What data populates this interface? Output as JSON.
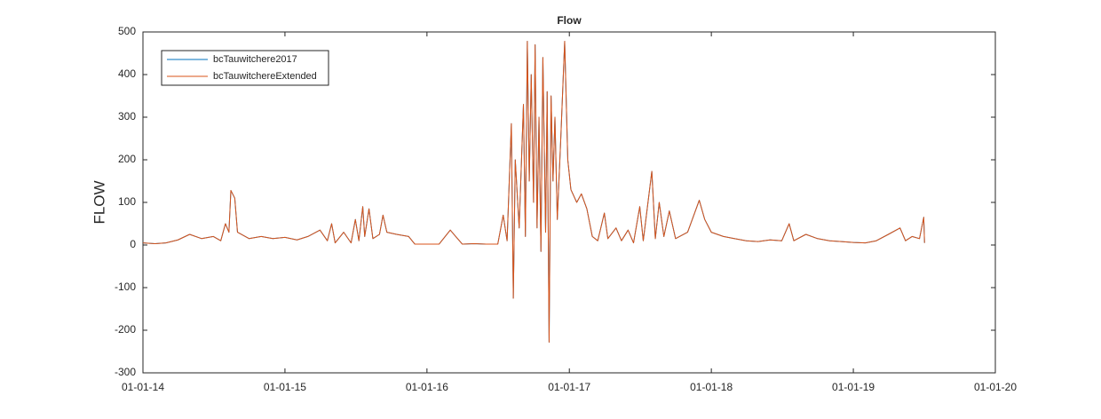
{
  "chart_data": {
    "type": "line",
    "title": "Flow",
    "y_label": "FLOW",
    "x": [
      "01-01-14",
      "02-01-14",
      "03-01-14",
      "04-01-14",
      "05-01-14",
      "06-01-14",
      "07-01-14",
      "07-20-14",
      "08-01-14",
      "08-10-14",
      "08-15-14",
      "08-25-14",
      "09-01-14",
      "10-01-14",
      "11-01-14",
      "12-01-14",
      "01-01-15",
      "02-01-15",
      "03-01-15",
      "04-01-15",
      "04-20-15",
      "05-01-15",
      "05-10-15",
      "06-01-15",
      "06-20-15",
      "07-01-15",
      "07-10-15",
      "07-20-15",
      "07-25-15",
      "08-05-15",
      "08-15-15",
      "09-01-15",
      "09-10-15",
      "09-20-15",
      "10-15-15",
      "11-15-15",
      "12-01-15",
      "01-01-16",
      "02-01-16",
      "03-01-16",
      "03-15-16",
      "04-01-16",
      "05-01-16",
      "06-01-16",
      "07-01-16",
      "07-15-16",
      "07-25-16",
      "08-05-16",
      "08-10-16",
      "08-15-16",
      "08-25-16",
      "09-05-16",
      "09-10-16",
      "09-15-16",
      "09-20-16",
      "09-25-16",
      "10-01-16",
      "10-05-16",
      "10-10-16",
      "10-15-16",
      "10-20-16",
      "10-25-16",
      "11-01-16",
      "11-05-16",
      "11-10-16",
      "11-15-16",
      "11-20-16",
      "11-25-16",
      "12-01-16",
      "12-10-16",
      "12-20-16",
      "12-28-16",
      "01-05-17",
      "01-20-17",
      "02-01-17",
      "02-15-17",
      "03-01-17",
      "03-15-17",
      "04-01-17",
      "04-10-17",
      "05-01-17",
      "05-15-17",
      "06-01-17",
      "06-15-17",
      "07-01-17",
      "07-10-17",
      "08-01-17",
      "08-10-17",
      "08-20-17",
      "09-01-17",
      "09-15-17",
      "10-01-17",
      "11-01-17",
      "12-01-17",
      "12-15-17",
      "01-01-18",
      "02-01-18",
      "03-01-18",
      "04-01-18",
      "05-01-18",
      "06-01-18",
      "07-01-18",
      "07-20-18",
      "08-01-18",
      "09-01-18",
      "10-01-18",
      "11-01-18",
      "12-01-18",
      "01-01-19",
      "02-01-19",
      "03-01-19",
      "04-01-19",
      "05-01-19",
      "05-15-19",
      "06-01-19",
      "06-20-19",
      "07-01-19",
      "07-03-19"
    ],
    "series": [
      {
        "name": "bcTauwitchere2017",
        "color": "#0072bd",
        "values": [
          5,
          3,
          5,
          12,
          25,
          15,
          20,
          10,
          50,
          30,
          128,
          110,
          30,
          15,
          20,
          15,
          18,
          12,
          20,
          35,
          10,
          50,
          5,
          30,
          5,
          60,
          10,
          90,
          20,
          85,
          15,
          25,
          70,
          30,
          25,
          20,
          2,
          2,
          2,
          35,
          20,
          2,
          3,
          2,
          2,
          70,
          10,
          285,
          -125,
          200,
          40,
          330,
          20,
          478,
          150,
          400,
          100,
          470,
          40,
          300,
          -15,
          440,
          30,
          360,
          -228,
          350,
          150,
          300,
          60,
          250,
          478,
          200,
          130,
          100,
          120,
          85,
          20,
          10,
          75,
          15,
          40,
          10,
          35,
          5,
          90,
          10,
          173,
          15,
          100,
          20,
          80,
          15,
          30,
          105,
          60,
          30,
          20,
          15,
          10,
          8,
          12,
          10,
          50,
          10,
          25,
          15,
          10,
          8,
          6,
          5,
          10,
          25,
          40,
          10,
          20,
          15,
          65,
          5
        ]
      },
      {
        "name": "bcTauwitchereExtended",
        "color": "#d95319",
        "values": [
          5,
          3,
          5,
          12,
          25,
          15,
          20,
          10,
          50,
          30,
          128,
          110,
          30,
          15,
          20,
          15,
          18,
          12,
          20,
          35,
          10,
          50,
          5,
          30,
          5,
          60,
          10,
          90,
          20,
          85,
          15,
          25,
          70,
          30,
          25,
          20,
          2,
          2,
          2,
          35,
          20,
          2,
          3,
          2,
          2,
          70,
          10,
          285,
          -125,
          200,
          40,
          330,
          20,
          478,
          150,
          400,
          100,
          470,
          40,
          300,
          -15,
          440,
          30,
          360,
          -228,
          350,
          150,
          300,
          60,
          250,
          478,
          200,
          130,
          100,
          120,
          85,
          20,
          10,
          75,
          15,
          40,
          10,
          35,
          5,
          90,
          10,
          173,
          15,
          100,
          20,
          80,
          15,
          30,
          105,
          60,
          30,
          20,
          15,
          10,
          8,
          12,
          10,
          50,
          10,
          25,
          15,
          10,
          8,
          6,
          5,
          10,
          25,
          40,
          10,
          20,
          15,
          65,
          5
        ]
      }
    ],
    "xlim": [
      "01-01-14",
      "01-01-20"
    ],
    "xticks": [
      "01-01-14",
      "01-01-15",
      "01-01-16",
      "01-01-17",
      "01-01-18",
      "01-01-19",
      "01-01-20"
    ],
    "ylim": [
      -300,
      500
    ],
    "yticks": [
      -300,
      -200,
      -100,
      0,
      100,
      200,
      300,
      400,
      500
    ],
    "legend": "upper left"
  }
}
